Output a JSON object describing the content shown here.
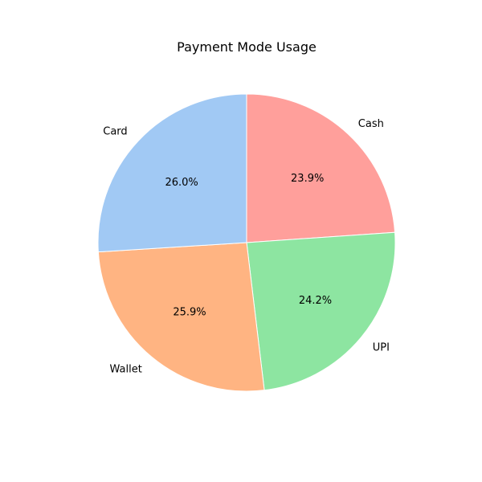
{
  "chart_data": {
    "type": "pie",
    "title": "Payment Mode Usage",
    "categories": [
      "Cash",
      "UPI",
      "Wallet",
      "Card"
    ],
    "values": [
      23.9,
      24.2,
      25.9,
      26.0
    ],
    "percent_labels": [
      "23.9%",
      "24.2%",
      "25.9%",
      "26.0%"
    ],
    "colors": [
      "#ff9f9b",
      "#8de5a1",
      "#ffb482",
      "#a1c9f4"
    ],
    "start_angle_deg": 90,
    "direction": "clockwise",
    "legend": "none"
  }
}
